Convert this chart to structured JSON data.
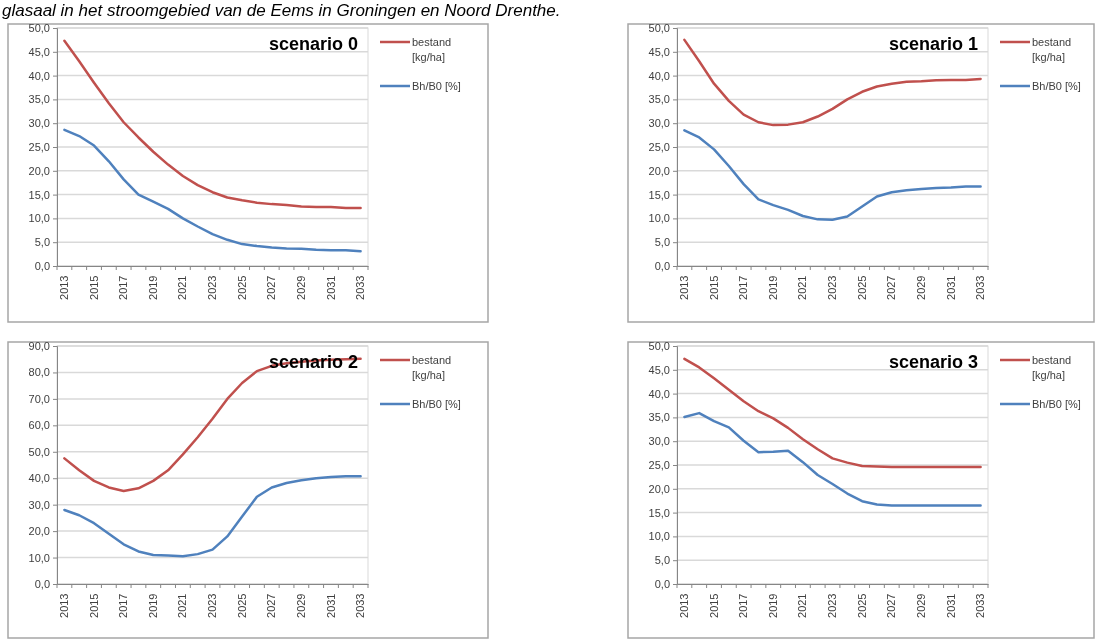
{
  "chart_data": [
    {
      "type": "line",
      "title": "scenario 0",
      "annotations": [
        "glasaal in het stroomgebied van de Eems in Groningen en Noord Drenthe."
      ],
      "categories": [
        "2013",
        null,
        "2015",
        null,
        "2017",
        null,
        "2019",
        null,
        "2021",
        null,
        "2023",
        null,
        "2025",
        null,
        "2027",
        null,
        "2029",
        null,
        "2031",
        null,
        "2033"
      ],
      "series": [
        {
          "name": "bestand [kg/ha]",
          "color": "#c0504d",
          "values": [
            47.3,
            43.0,
            38.5,
            34.2,
            30.2,
            27.0,
            24.0,
            21.3,
            18.9,
            17.0,
            15.5,
            14.4,
            13.8,
            13.3,
            13.0,
            12.8,
            12.5,
            12.4,
            12.4,
            12.2,
            12.2
          ]
        },
        {
          "name": "Bh/B0 [%]",
          "color": "#4f81bd",
          "values": [
            28.6,
            27.3,
            25.3,
            22.0,
            18.2,
            15.0,
            13.5,
            12.0,
            10.0,
            8.3,
            6.7,
            5.5,
            4.6,
            4.2,
            3.9,
            3.7,
            3.6,
            3.4,
            3.3,
            3.3,
            3.1
          ]
        }
      ],
      "ylim": [
        0,
        50
      ],
      "yticks": [
        {
          "value": 0,
          "label": "0,0"
        },
        {
          "value": 5,
          "label": "5,0"
        },
        {
          "value": 10,
          "label": "10,0"
        },
        {
          "value": 15,
          "label": "15,0"
        },
        {
          "value": 20,
          "label": "20,0"
        },
        {
          "value": 25,
          "label": "25,0"
        },
        {
          "value": 30,
          "label": "30,0"
        },
        {
          "value": 35,
          "label": "35,0"
        },
        {
          "value": 40,
          "label": "40,0"
        },
        {
          "value": 45,
          "label": "45,0"
        },
        {
          "value": 50,
          "label": "50,0"
        }
      ],
      "grid": "y",
      "legend": "right",
      "marker": "none",
      "line_style": "solid"
    },
    {
      "type": "line",
      "title": "scenario 1",
      "categories": [
        "2013",
        null,
        "2015",
        null,
        "2017",
        null,
        "2019",
        null,
        "2021",
        null,
        "2023",
        null,
        "2025",
        null,
        "2027",
        null,
        "2029",
        null,
        "2031",
        null,
        "2033"
      ],
      "series": [
        {
          "name": "bestand [kg/ha]",
          "color": "#c0504d",
          "values": [
            47.5,
            43.0,
            38.3,
            34.7,
            31.8,
            30.2,
            29.6,
            29.7,
            30.2,
            31.4,
            33.0,
            35.0,
            36.6,
            37.7,
            38.3,
            38.7,
            38.8,
            39.0,
            39.1,
            39.1,
            39.3
          ]
        },
        {
          "name": "Bh/B0 [%]",
          "color": "#4f81bd",
          "values": [
            28.5,
            27.0,
            24.5,
            21.0,
            17.2,
            14.0,
            12.8,
            11.8,
            10.5,
            9.8,
            9.7,
            10.4,
            12.5,
            14.6,
            15.5,
            15.9,
            16.2,
            16.4,
            16.5,
            16.7,
            16.7
          ]
        }
      ],
      "ylim": [
        0,
        50
      ],
      "yticks": [
        {
          "value": 0,
          "label": "0,0"
        },
        {
          "value": 5,
          "label": "5,0"
        },
        {
          "value": 10,
          "label": "10,0"
        },
        {
          "value": 15,
          "label": "15,0"
        },
        {
          "value": 20,
          "label": "20,0"
        },
        {
          "value": 25,
          "label": "25,0"
        },
        {
          "value": 30,
          "label": "30,0"
        },
        {
          "value": 35,
          "label": "35,0"
        },
        {
          "value": 40,
          "label": "40,0"
        },
        {
          "value": 45,
          "label": "45,0"
        },
        {
          "value": 50,
          "label": "50,0"
        }
      ],
      "grid": "y",
      "legend": "right",
      "marker": "none",
      "line_style": "solid"
    },
    {
      "type": "line",
      "title": "scenario 2",
      "categories": [
        "2013",
        null,
        "2015",
        null,
        "2017",
        null,
        "2019",
        null,
        "2021",
        null,
        "2023",
        null,
        "2025",
        null,
        "2027",
        null,
        "2029",
        null,
        "2031",
        null,
        "2033"
      ],
      "series": [
        {
          "name": "bestand [kg/ha]",
          "color": "#c0504d",
          "values": [
            47.5,
            43.0,
            39.0,
            36.5,
            35.2,
            36.2,
            39.0,
            43.0,
            49.0,
            55.5,
            62.5,
            70.0,
            76.0,
            80.5,
            82.5,
            83.5,
            84.0,
            84.5,
            84.8,
            85.0,
            85.2
          ]
        },
        {
          "name": "Bh/B0 [%]",
          "color": "#4f81bd",
          "values": [
            28.0,
            26.0,
            23.0,
            19.0,
            15.0,
            12.3,
            11.0,
            10.8,
            10.5,
            11.3,
            13.0,
            18.0,
            25.5,
            33.0,
            36.5,
            38.2,
            39.2,
            40.0,
            40.5,
            40.7,
            40.7
          ]
        }
      ],
      "ylim": [
        0,
        90
      ],
      "yticks": [
        {
          "value": 0,
          "label": "0,0"
        },
        {
          "value": 10,
          "label": "10,0"
        },
        {
          "value": 20,
          "label": "20,0"
        },
        {
          "value": 30,
          "label": "30,0"
        },
        {
          "value": 40,
          "label": "40,0"
        },
        {
          "value": 50,
          "label": "50,0"
        },
        {
          "value": 60,
          "label": "60,0"
        },
        {
          "value": 70,
          "label": "70,0"
        },
        {
          "value": 80,
          "label": "80,0"
        },
        {
          "value": 90,
          "label": "90,0"
        }
      ],
      "grid": "y",
      "legend": "right",
      "marker": "none",
      "line_style": "solid"
    },
    {
      "type": "line",
      "title": "scenario 3",
      "categories": [
        "2013",
        null,
        "2015",
        null,
        "2017",
        null,
        "2019",
        null,
        "2021",
        null,
        "2023",
        null,
        "2025",
        null,
        "2027",
        null,
        "2029",
        null,
        "2031",
        null,
        "2033"
      ],
      "series": [
        {
          "name": "bestand [kg/ha]",
          "color": "#c0504d",
          "values": [
            47.3,
            45.5,
            43.2,
            40.8,
            38.4,
            36.3,
            34.8,
            32.8,
            30.4,
            28.3,
            26.4,
            25.5,
            24.8,
            24.7,
            24.6,
            24.6,
            24.6,
            24.6,
            24.6,
            24.6,
            24.6
          ]
        },
        {
          "name": "Bh/B0 [%]",
          "color": "#4f81bd",
          "values": [
            35.1,
            35.9,
            34.2,
            32.9,
            30.1,
            27.7,
            27.8,
            28.0,
            25.6,
            22.9,
            21.0,
            19.0,
            17.4,
            16.7,
            16.5,
            16.5,
            16.5,
            16.5,
            16.5,
            16.5,
            16.5
          ]
        }
      ],
      "ylim": [
        0,
        50
      ],
      "yticks": [
        {
          "value": 0,
          "label": "0,0"
        },
        {
          "value": 5,
          "label": "5,0"
        },
        {
          "value": 10,
          "label": "10,0"
        },
        {
          "value": 15,
          "label": "15,0"
        },
        {
          "value": 20,
          "label": "20,0"
        },
        {
          "value": 25,
          "label": "25,0"
        },
        {
          "value": 30,
          "label": "30,0"
        },
        {
          "value": 35,
          "label": "35,0"
        },
        {
          "value": 40,
          "label": "40,0"
        },
        {
          "value": 45,
          "label": "45,0"
        },
        {
          "value": 50,
          "label": "50,0"
        }
      ],
      "grid": "y",
      "legend": "right",
      "marker": "none",
      "line_style": "solid"
    }
  ]
}
